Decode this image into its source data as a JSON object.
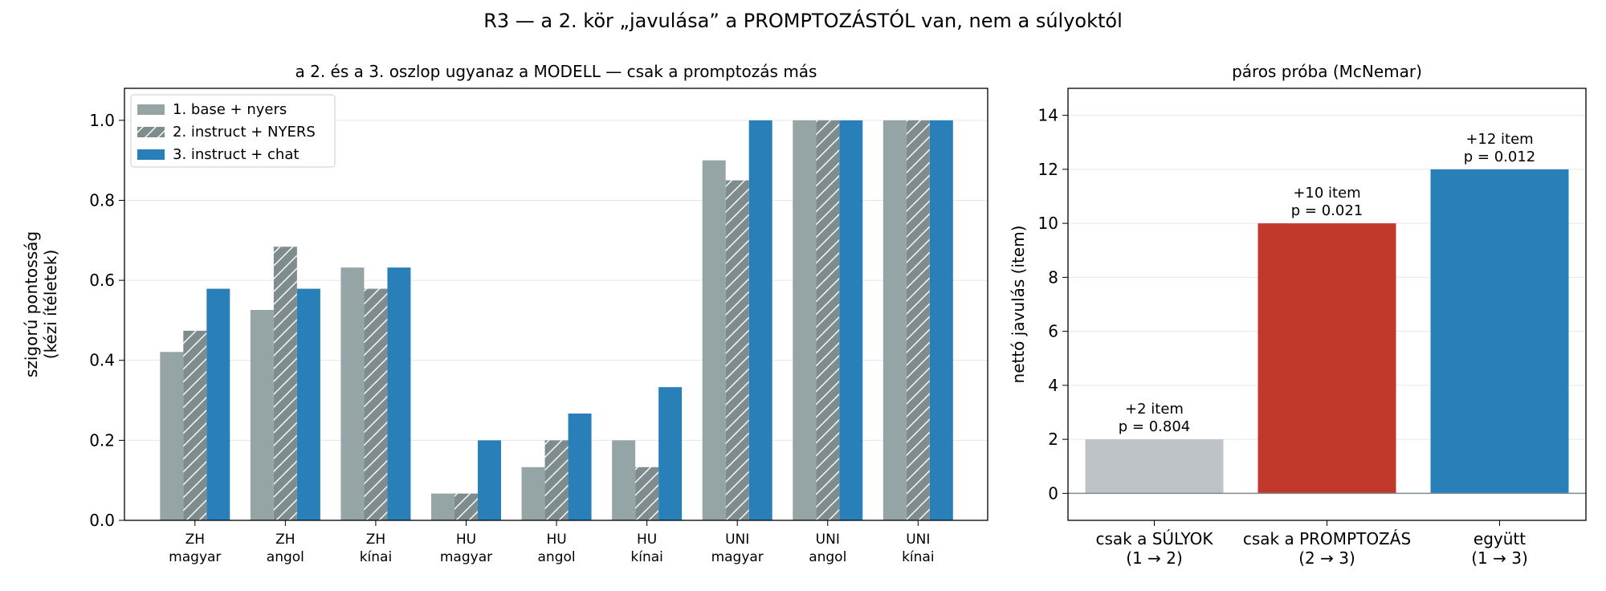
{
  "figure": {
    "title": "R3 — a 2. kör „javulása” a PROMPTOZÁSTÓL van, nem a súlyoktól"
  },
  "chart_data": [
    {
      "type": "bar",
      "title": "a 2. és a 3. oszlop ugyanaz a MODELL — csak a promptozás más",
      "xlabel": "",
      "ylabel": "szigorú pontosság\n(kézi ítéletek)",
      "ylim": [
        0,
        1.08
      ],
      "yticks": [
        "0.0",
        "0.2",
        "0.4",
        "0.6",
        "0.8",
        "1.0"
      ],
      "grid": "horizontal",
      "legend_position": "top-left",
      "categories": [
        "ZH\nmagyar",
        "ZH\nangol",
        "ZH\nkínai",
        "HU\nmagyar",
        "HU\nangol",
        "HU\nkínai",
        "UNI\nmagyar",
        "UNI\nangol",
        "UNI\nkínai"
      ],
      "series": [
        {
          "name": "1. base + nyers",
          "color": "#95a5a6",
          "hatch": false,
          "values": [
            0.421,
            0.526,
            0.632,
            0.067,
            0.133,
            0.2,
            0.9,
            1.0,
            1.0
          ]
        },
        {
          "name": "2. instruct + NYERS",
          "color": "#7f8c8d",
          "hatch": true,
          "values": [
            0.474,
            0.684,
            0.579,
            0.067,
            0.2,
            0.133,
            0.85,
            1.0,
            1.0
          ]
        },
        {
          "name": "3. instruct + chat",
          "color": "#2980b9",
          "hatch": false,
          "values": [
            0.579,
            0.579,
            0.632,
            0.2,
            0.267,
            0.333,
            1.0,
            1.0,
            1.0
          ]
        }
      ]
    },
    {
      "type": "bar",
      "title": "páros próba (McNemar)",
      "xlabel": "",
      "ylabel": "nettó javulás (item)",
      "ylim": [
        -1,
        15
      ],
      "yticks": [
        "0",
        "2",
        "4",
        "6",
        "8",
        "10",
        "12",
        "14"
      ],
      "grid": "horizontal",
      "categories": [
        "csak a SÚLYOK\n(1 → 2)",
        "csak a PROMPTOZÁS\n(2 → 3)",
        "együtt\n(1 → 3)"
      ],
      "values": [
        2,
        10,
        12
      ],
      "colors": [
        "#bdc3c7",
        "#c0392b",
        "#2980b9"
      ],
      "annotations": [
        "+2 item\np = 0.804",
        "+10 item\np = 0.021",
        "+12 item\np = 0.012"
      ]
    }
  ]
}
